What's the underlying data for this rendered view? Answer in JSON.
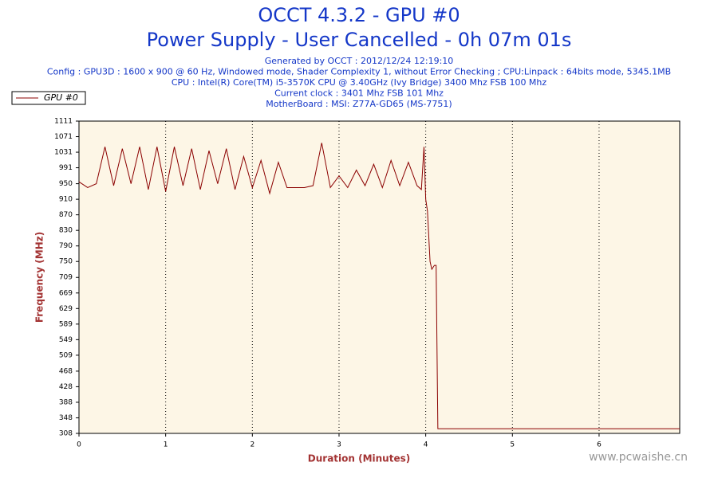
{
  "chart_data": {
    "type": "line",
    "title": "OCCT 4.3.2 - GPU #0",
    "subtitle": "Power Supply - User Cancelled - 0h 07m 01s",
    "info_lines": [
      "Generated by OCCT : 2012/12/24 12:19:10",
      "Config : GPU3D : 1600 x 900 @ 60 Hz, Windowed mode, Shader Complexity 1, without Error Checking ; CPU:Linpack : 64bits mode, 5345.1MB",
      "CPU : Intel(R) Core(TM) i5-3570K CPU @ 3.40GHz (Ivy Bridge) 3400 Mhz FSB 100 Mhz",
      "Current clock : 3401 Mhz FSB 101 Mhz",
      "MotherBoard : MSI: Z77A-GD65 (MS-7751)"
    ],
    "x_label": "Duration (Minutes)",
    "y_label": "Frequency (MHz)",
    "watermark": "www.pcwaishe.cn",
    "x": [
      0,
      0.1,
      0.2,
      0.3,
      0.4,
      0.5,
      0.6,
      0.7,
      0.8,
      0.9,
      1.0,
      1.1,
      1.2,
      1.3,
      1.4,
      1.5,
      1.6,
      1.7,
      1.8,
      1.9,
      2.0,
      2.1,
      2.2,
      2.3,
      2.4,
      2.5,
      2.6,
      2.7,
      2.8,
      2.9,
      3.0,
      3.1,
      3.2,
      3.3,
      3.4,
      3.5,
      3.6,
      3.7,
      3.8,
      3.9,
      3.95,
      3.98,
      4.0,
      4.02,
      4.05,
      4.07,
      4.1,
      4.12,
      4.14,
      5.0,
      6.0,
      6.93
    ],
    "series": [
      {
        "name": "GPU #0",
        "color": "#8b0000",
        "values": [
          955,
          940,
          950,
          1045,
          945,
          1040,
          950,
          1045,
          935,
          1045,
          930,
          1045,
          945,
          1040,
          935,
          1035,
          950,
          1040,
          935,
          1020,
          940,
          1010,
          925,
          1005,
          940,
          940,
          940,
          945,
          1055,
          940,
          970,
          940,
          985,
          945,
          1000,
          940,
          1010,
          945,
          1005,
          945,
          935,
          1045,
          910,
          880,
          750,
          730,
          740,
          740,
          320,
          320,
          320,
          320
        ]
      }
    ],
    "xlim": [
      0,
      6.93
    ],
    "xticks": [
      0,
      1,
      2,
      3,
      4,
      5,
      6
    ],
    "ylim": [
      308,
      1111
    ],
    "yticks": [
      308,
      348,
      388,
      428,
      468,
      509,
      549,
      589,
      629,
      669,
      709,
      750,
      790,
      830,
      870,
      910,
      950,
      991,
      1031,
      1071,
      1111
    ],
    "grid": true,
    "legend": "top-left"
  }
}
